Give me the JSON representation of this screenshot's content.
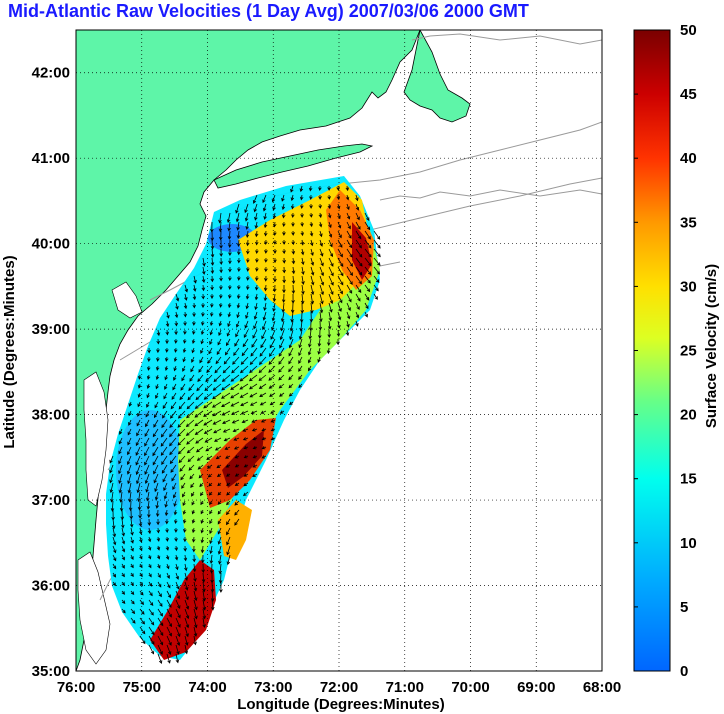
{
  "title": "Mid-Atlantic Raw Velocities (1 Day Avg) 2007/03/06 2000 GMT",
  "map": {
    "xlabel": "Longitude (Degrees:Minutes)",
    "ylabel": "Latitude (Degrees:Minutes)",
    "x_ticks": [
      "76:00",
      "75:00",
      "74:00",
      "73:00",
      "72:00",
      "71:00",
      "70:00",
      "69:00",
      "68:00"
    ],
    "y_ticks": [
      "35:00",
      "36:00",
      "37:00",
      "38:00",
      "39:00",
      "40:00",
      "41:00",
      "42:00"
    ],
    "lon_range": [
      -76,
      -68
    ],
    "lat_range": [
      35,
      42.5
    ],
    "grid": "dotted",
    "land_color": "#5ef5a8",
    "contour_color": "#9a9a9a"
  },
  "colorbar": {
    "label": "Surface Velocity (cm/s)",
    "ticks": [
      "0",
      "5",
      "10",
      "15",
      "20",
      "25",
      "30",
      "35",
      "40",
      "45",
      "50"
    ],
    "range": [
      0,
      50
    ]
  }
}
